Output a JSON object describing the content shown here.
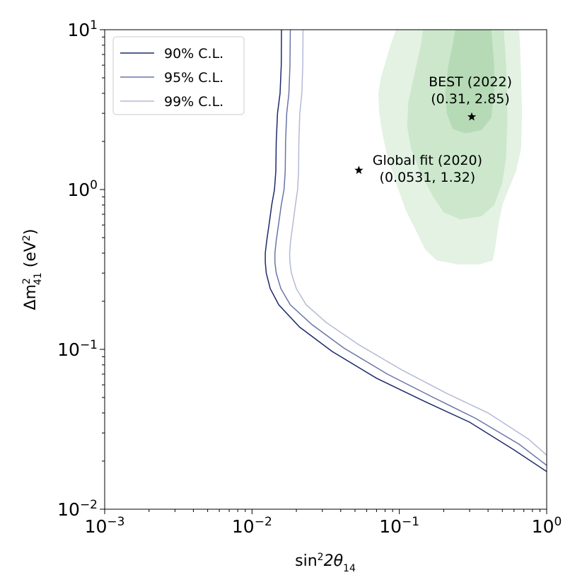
{
  "chart_data": {
    "type": "line",
    "title": "",
    "xlabel": {
      "base": "sin",
      "sup": "2",
      "mid": "2θ",
      "sub": "14"
    },
    "ylabel": {
      "base": "Δm",
      "sup": "2",
      "sub": "41",
      "unit_open": " (eV",
      "unit_sup": "2",
      "unit_close": ")"
    },
    "x_scale": "log",
    "y_scale": "log",
    "xlim": [
      0.001,
      1
    ],
    "ylim": [
      0.01,
      10
    ],
    "grid": false,
    "legend_position": "top-left",
    "x_ticks": [
      {
        "value": 0.001,
        "base": "10",
        "exp": "−3"
      },
      {
        "value": 0.01,
        "base": "10",
        "exp": "−2"
      },
      {
        "value": 0.1,
        "base": "10",
        "exp": "−1"
      },
      {
        "value": 1,
        "base": "10",
        "exp": "0"
      }
    ],
    "y_ticks": [
      {
        "value": 0.01,
        "base": "10",
        "exp": "−2"
      },
      {
        "value": 0.1,
        "base": "10",
        "exp": "−1"
      },
      {
        "value": 1,
        "base": "10",
        "exp": "0"
      },
      {
        "value": 10,
        "base": "10",
        "exp": "1"
      }
    ],
    "series": [
      {
        "name": "90% C.L.",
        "color": "#1b2a6b",
        "points": [
          [
            0.01585,
            10
          ],
          [
            0.0158,
            6
          ],
          [
            0.0155,
            4
          ],
          [
            0.0149,
            3
          ],
          [
            0.0146,
            2
          ],
          [
            0.0145,
            1.3
          ],
          [
            0.0142,
            1
          ],
          [
            0.0136,
            0.8
          ],
          [
            0.0131,
            0.62
          ],
          [
            0.0126,
            0.48
          ],
          [
            0.0123,
            0.4
          ],
          [
            0.0123,
            0.35
          ],
          [
            0.0125,
            0.3
          ],
          [
            0.0133,
            0.24
          ],
          [
            0.0152,
            0.19
          ],
          [
            0.021,
            0.138
          ],
          [
            0.035,
            0.097
          ],
          [
            0.07,
            0.066
          ],
          [
            0.15,
            0.047
          ],
          [
            0.3,
            0.035
          ],
          [
            0.6,
            0.0235
          ],
          [
            1.0,
            0.0172
          ]
        ]
      },
      {
        "name": "95% C.L.",
        "color": "#6a75a8",
        "points": [
          [
            0.0182,
            10
          ],
          [
            0.0181,
            6
          ],
          [
            0.0178,
            4
          ],
          [
            0.0172,
            3
          ],
          [
            0.0169,
            2
          ],
          [
            0.0168,
            1.3
          ],
          [
            0.0165,
            1
          ],
          [
            0.0158,
            0.8
          ],
          [
            0.0152,
            0.62
          ],
          [
            0.0146,
            0.48
          ],
          [
            0.0143,
            0.4
          ],
          [
            0.0143,
            0.35
          ],
          [
            0.0146,
            0.3
          ],
          [
            0.0157,
            0.24
          ],
          [
            0.0182,
            0.19
          ],
          [
            0.0255,
            0.143
          ],
          [
            0.042,
            0.102
          ],
          [
            0.083,
            0.07
          ],
          [
            0.17,
            0.05
          ],
          [
            0.33,
            0.037
          ],
          [
            0.65,
            0.0255
          ],
          [
            1.0,
            0.0188
          ]
        ]
      },
      {
        "name": "99% C.L.",
        "color": "#b4b9d6",
        "points": [
          [
            0.0222,
            10
          ],
          [
            0.0221,
            6
          ],
          [
            0.0218,
            4
          ],
          [
            0.0211,
            3
          ],
          [
            0.0208,
            2
          ],
          [
            0.0207,
            1.3
          ],
          [
            0.0204,
            1
          ],
          [
            0.0197,
            0.8
          ],
          [
            0.019,
            0.62
          ],
          [
            0.0183,
            0.48
          ],
          [
            0.018,
            0.4
          ],
          [
            0.0181,
            0.35
          ],
          [
            0.0185,
            0.3
          ],
          [
            0.02,
            0.24
          ],
          [
            0.0233,
            0.19
          ],
          [
            0.032,
            0.147
          ],
          [
            0.053,
            0.107
          ],
          [
            0.105,
            0.074
          ],
          [
            0.21,
            0.053
          ],
          [
            0.4,
            0.04
          ],
          [
            0.75,
            0.0275
          ],
          [
            1.0,
            0.0218
          ]
        ]
      }
    ],
    "regions": [
      {
        "opacity": 0.24,
        "color": "#8cc98c",
        "points": [
          [
            0.095,
            10
          ],
          [
            0.087,
            8
          ],
          [
            0.075,
            5
          ],
          [
            0.072,
            4
          ],
          [
            0.073,
            3
          ],
          [
            0.077,
            2.2
          ],
          [
            0.083,
            1.6
          ],
          [
            0.095,
            1.1
          ],
          [
            0.11,
            0.75
          ],
          [
            0.13,
            0.55
          ],
          [
            0.15,
            0.42
          ],
          [
            0.18,
            0.36
          ],
          [
            0.25,
            0.34
          ],
          [
            0.35,
            0.34
          ],
          [
            0.43,
            0.36
          ],
          [
            0.45,
            0.45
          ],
          [
            0.47,
            0.6
          ],
          [
            0.5,
            0.8
          ],
          [
            0.55,
            1.0
          ],
          [
            0.62,
            1.3
          ],
          [
            0.67,
            1.8
          ],
          [
            0.68,
            3
          ],
          [
            0.67,
            5
          ],
          [
            0.66,
            8
          ],
          [
            0.65,
            10
          ]
        ]
      },
      {
        "opacity": 0.22,
        "color": "#7dbf7d",
        "points": [
          [
            0.145,
            10
          ],
          [
            0.14,
            8
          ],
          [
            0.125,
            5
          ],
          [
            0.115,
            3.5
          ],
          [
            0.113,
            2.5
          ],
          [
            0.12,
            1.8
          ],
          [
            0.14,
            1.25
          ],
          [
            0.17,
            0.9
          ],
          [
            0.2,
            0.72
          ],
          [
            0.26,
            0.65
          ],
          [
            0.36,
            0.68
          ],
          [
            0.44,
            0.8
          ],
          [
            0.5,
            1.1
          ],
          [
            0.53,
            1.6
          ],
          [
            0.54,
            2.5
          ],
          [
            0.54,
            4
          ],
          [
            0.53,
            6
          ],
          [
            0.52,
            8
          ],
          [
            0.51,
            10
          ]
        ]
      },
      {
        "opacity": 0.24,
        "color": "#6cb46c",
        "points": [
          [
            0.24,
            10
          ],
          [
            0.23,
            8
          ],
          [
            0.215,
            6
          ],
          [
            0.205,
            4
          ],
          [
            0.21,
            3
          ],
          [
            0.23,
            2.4
          ],
          [
            0.28,
            2.25
          ],
          [
            0.36,
            2.35
          ],
          [
            0.42,
            2.8
          ],
          [
            0.44,
            4
          ],
          [
            0.44,
            6
          ],
          [
            0.43,
            8
          ],
          [
            0.42,
            10
          ]
        ]
      }
    ],
    "annotations": [
      {
        "label1": "BEST (2022)",
        "label2": "(0.31, 2.85)",
        "x": 0.31,
        "y": 2.85
      },
      {
        "label1": "Global fit (2020)",
        "label2": "(0.0531, 1.32)",
        "x": 0.0531,
        "y": 1.32
      }
    ]
  }
}
